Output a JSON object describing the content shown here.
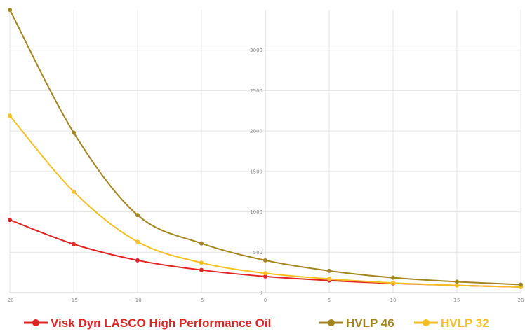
{
  "chart_data": {
    "type": "line",
    "title": "",
    "xlabel": "",
    "ylabel": "",
    "x": [
      -20,
      -15,
      -10,
      -5,
      0,
      5,
      10,
      15,
      20
    ],
    "xlim": [
      -20,
      20
    ],
    "ylim": [
      0,
      3500
    ],
    "x_ticks": [
      "-20",
      "-15",
      "-10",
      "-5",
      "0",
      "5",
      "10",
      "15",
      "20"
    ],
    "y_ticks": [
      "0",
      "500",
      "1000",
      "1500",
      "2000",
      "2500",
      "3000"
    ],
    "grid": true,
    "legend_position": "bottom",
    "series": [
      {
        "name": "Visk Dyn LASCO High Performance Oil",
        "color": "#e02424",
        "values": [
          900,
          600,
          400,
          280,
          200,
          150,
          115,
          90,
          70
        ]
      },
      {
        "name": "HVLP 46",
        "color": "#a38520",
        "values": [
          3500,
          1980,
          960,
          610,
          400,
          270,
          185,
          135,
          100
        ]
      },
      {
        "name": "HVLP 32",
        "color": "#f5c022",
        "values": [
          2190,
          1250,
          630,
          370,
          240,
          170,
          120,
          90,
          70
        ]
      }
    ]
  }
}
